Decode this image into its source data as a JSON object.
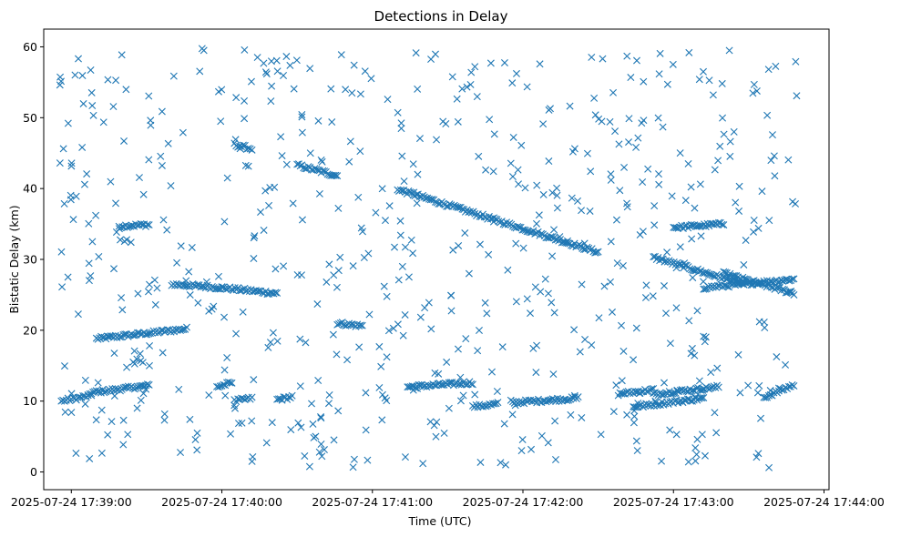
{
  "chart_data": {
    "type": "scatter",
    "title": "Detections in Delay",
    "xlabel": "Time (UTC)",
    "ylabel": "Bistatic Delay (km)",
    "marker": "x",
    "color": "#1f77b4",
    "grid": false,
    "legend": "none",
    "x_range": [
      "2025-07-24 17:38:49",
      "2025-07-24 17:44:02"
    ],
    "ylim": [
      -2.5,
      62.5
    ],
    "x_ticks": [
      "2025-07-24 17:39:00",
      "2025-07-24 17:40:00",
      "2025-07-24 17:41:00",
      "2025-07-24 17:42:00",
      "2025-07-24 17:43:00",
      "2025-07-24 17:44:00"
    ],
    "y_ticks": [
      0,
      10,
      20,
      30,
      40,
      50,
      60
    ],
    "series": [
      {
        "description": "detections",
        "tracks": [
          {
            "start": "2025-07-24 17:39:10",
            "end": "2025-07-24 17:39:46",
            "y_start": 18.8,
            "y_end": 20.2
          },
          {
            "start": "2025-07-24 17:39:19",
            "end": "2025-07-24 17:39:31",
            "y_start": 34.7,
            "y_end": 34.9
          },
          {
            "start": "2025-07-24 17:38:56",
            "end": "2025-07-24 17:39:08",
            "y_start": 10.0,
            "y_end": 10.8
          },
          {
            "start": "2025-07-24 17:39:08",
            "end": "2025-07-24 17:39:31",
            "y_start": 11.2,
            "y_end": 12.2
          },
          {
            "start": "2025-07-24 17:39:40",
            "end": "2025-07-24 17:40:00",
            "y_start": 26.5,
            "y_end": 26.0
          },
          {
            "start": "2025-07-24 17:40:00",
            "end": "2025-07-24 17:40:22",
            "y_start": 26.0,
            "y_end": 25.2
          },
          {
            "start": "2025-07-24 17:39:58",
            "end": "2025-07-24 17:40:04",
            "y_start": 12.0,
            "y_end": 12.6
          },
          {
            "start": "2025-07-24 17:40:05",
            "end": "2025-07-24 17:40:12",
            "y_start": 46.2,
            "y_end": 45.6
          },
          {
            "start": "2025-07-24 17:40:05",
            "end": "2025-07-24 17:40:12",
            "y_start": 10.0,
            "y_end": 10.4
          },
          {
            "start": "2025-07-24 17:40:22",
            "end": "2025-07-24 17:40:28",
            "y_start": 10.2,
            "y_end": 10.6
          },
          {
            "start": "2025-07-24 17:40:30",
            "end": "2025-07-24 17:40:46",
            "y_start": 43.3,
            "y_end": 41.8
          },
          {
            "start": "2025-07-24 17:40:46",
            "end": "2025-07-24 17:40:56",
            "y_start": 21.0,
            "y_end": 20.6
          },
          {
            "start": "2025-07-24 17:41:10",
            "end": "2025-07-24 17:42:30",
            "y_start": 39.9,
            "y_end": 31.0
          },
          {
            "start": "2025-07-24 17:41:14",
            "end": "2025-07-24 17:41:40",
            "y_start": 12.0,
            "y_end": 12.6
          },
          {
            "start": "2025-07-24 17:41:40",
            "end": "2025-07-24 17:41:50",
            "y_start": 9.2,
            "y_end": 9.6
          },
          {
            "start": "2025-07-24 17:41:56",
            "end": "2025-07-24 17:42:22",
            "y_start": 9.8,
            "y_end": 10.4
          },
          {
            "start": "2025-07-24 17:42:38",
            "end": "2025-07-24 17:42:52",
            "y_start": 11.0,
            "y_end": 11.6
          },
          {
            "start": "2025-07-24 17:42:52",
            "end": "2025-07-24 17:43:28",
            "y_start": 30.3,
            "y_end": 26.5
          },
          {
            "start": "2025-07-24 17:43:20",
            "end": "2025-07-24 17:43:48",
            "y_start": 28.0,
            "y_end": 25.2
          },
          {
            "start": "2025-07-24 17:43:00",
            "end": "2025-07-24 17:43:20",
            "y_start": 34.5,
            "y_end": 35.0
          },
          {
            "start": "2025-07-24 17:43:12",
            "end": "2025-07-24 17:43:48",
            "y_start": 26.0,
            "y_end": 27.2
          },
          {
            "start": "2025-07-24 17:42:44",
            "end": "2025-07-24 17:43:12",
            "y_start": 9.2,
            "y_end": 10.4
          },
          {
            "start": "2025-07-24 17:42:52",
            "end": "2025-07-24 17:43:18",
            "y_start": 11.0,
            "y_end": 12.0
          },
          {
            "start": "2025-07-24 17:43:36",
            "end": "2025-07-24 17:43:48",
            "y_start": 10.5,
            "y_end": 12.3
          }
        ],
        "scatter_points": 620
      }
    ]
  }
}
